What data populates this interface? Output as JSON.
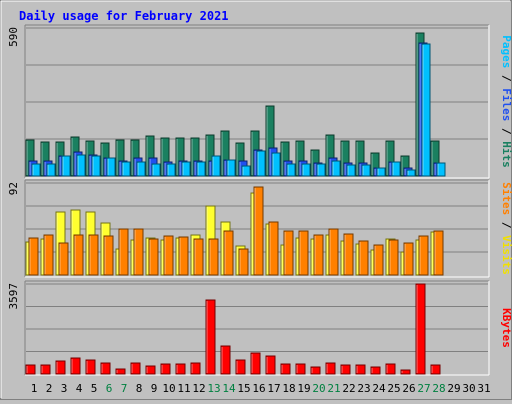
{
  "chart_data": {
    "type": "bar",
    "title": "Daily usage for February 2021",
    "categories": [
      "1",
      "2",
      "3",
      "4",
      "5",
      "6",
      "7",
      "8",
      "9",
      "10",
      "11",
      "12",
      "13",
      "14",
      "15",
      "16",
      "17",
      "18",
      "19",
      "20",
      "21",
      "22",
      "23",
      "24",
      "25",
      "26",
      "27",
      "28",
      "29",
      "30",
      "31"
    ],
    "weekend_days": [
      "6",
      "7",
      "13",
      "14",
      "20",
      "21",
      "27",
      "28"
    ],
    "panels": [
      {
        "id": "hits",
        "max_label": "590",
        "ylim": [
          0,
          590
        ],
        "right_label": {
          "parts": [
            {
              "text": "Pages",
              "color": "#00c0ff"
            },
            {
              "text": " / ",
              "color": "#000000"
            },
            {
              "text": "Files",
              "color": "#2050f0"
            },
            {
              "text": " / ",
              "color": "#000000"
            },
            {
              "text": "Hits",
              "color": "#1a8060"
            }
          ]
        },
        "series": [
          {
            "name": "Hits",
            "color": "#1a8060",
            "values": [
              145,
              135,
              135,
              155,
              140,
              130,
              145,
              145,
              160,
              150,
              150,
              150,
              165,
              180,
              130,
              180,
              280,
              135,
              140,
              105,
              165,
              140,
              140,
              90,
              140,
              80,
              570,
              140,
              0,
              0,
              0
            ]
          },
          {
            "name": "Files",
            "color": "#2050f0",
            "values": [
              60,
              60,
              80,
              95,
              85,
              70,
              60,
              70,
              70,
              55,
              60,
              60,
              60,
              65,
              60,
              105,
              110,
              60,
              60,
              50,
              70,
              50,
              50,
              30,
              55,
              30,
              530,
              50,
              0,
              0,
              0
            ]
          },
          {
            "name": "Pages",
            "color": "#00c0ff",
            "values": [
              48,
              48,
              78,
              85,
              80,
              70,
              55,
              55,
              48,
              48,
              55,
              55,
              80,
              65,
              40,
              100,
              90,
              48,
              48,
              48,
              58,
              45,
              45,
              30,
              55,
              22,
              525,
              50,
              0,
              0,
              0
            ]
          }
        ]
      },
      {
        "id": "visits",
        "max_label": "92",
        "ylim": [
          0,
          92
        ],
        "right_label": {
          "parts": [
            {
              "text": "Sites",
              "color": "#ff8000"
            },
            {
              "text": " / ",
              "color": "#000000"
            },
            {
              "text": "Visits",
              "color": "#f0e000"
            }
          ]
        },
        "series": [
          {
            "name": "Visits",
            "color": "#ffff30",
            "values": [
              33,
              36,
              63,
              65,
              63,
              52,
              26,
              35,
              37,
              35,
              37,
              40,
              69,
              53,
              29,
              82,
              51,
              30,
              37,
              36,
              40,
              34,
              31,
              25,
              36,
              23,
              35,
              43,
              0,
              0,
              0
            ]
          },
          {
            "name": "Sites",
            "color": "#ff8000",
            "values": [
              37,
              40,
              32,
              40,
              40,
              39,
              46,
              46,
              36,
              39,
              38,
              36,
              36,
              44,
              26,
              88,
              53,
              44,
              44,
              40,
              46,
              41,
              34,
              30,
              35,
              32,
              39,
              44,
              0,
              0,
              0
            ]
          }
        ]
      },
      {
        "id": "kbytes",
        "max_label": "3597",
        "ylim": [
          0,
          3597
        ],
        "right_label": {
          "parts": [
            {
              "text": "KBytes",
              "color": "#ff0000"
            }
          ]
        },
        "series": [
          {
            "name": "KBytes",
            "color": "#ff0000",
            "values": [
              360,
              360,
              500,
              620,
              540,
              440,
              210,
              440,
              310,
              400,
              400,
              420,
              2950,
              1100,
              560,
              820,
              700,
              380,
              400,
              280,
              430,
              360,
              360,
              270,
              380,
              170,
              3597,
              360,
              0,
              0,
              0
            ]
          }
        ]
      }
    ]
  },
  "colors": {
    "background": "#c0c0c0",
    "title": "#0000ff",
    "weekday_label": "#000000",
    "weekend_label": "#008040"
  }
}
